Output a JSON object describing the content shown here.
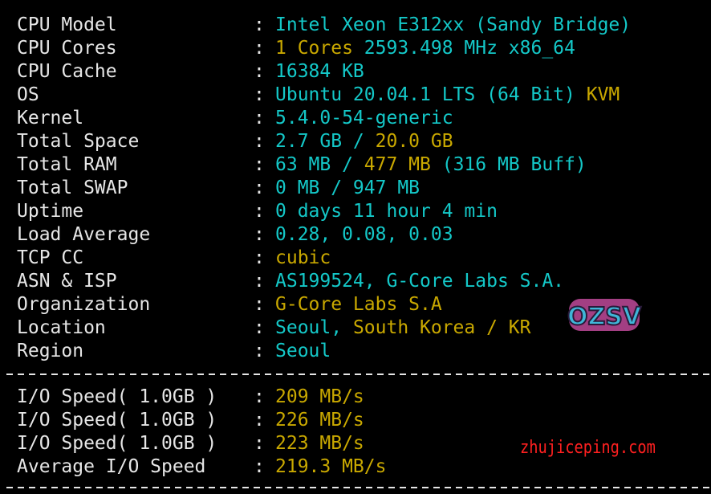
{
  "info_rows": [
    {
      "label": "CPU Model",
      "segments": [
        {
          "text": "Intel Xeon E312xx (Sandy Bridge)",
          "color": "c"
        }
      ]
    },
    {
      "label": "CPU Cores",
      "segments": [
        {
          "text": "1 Cores ",
          "color": "y"
        },
        {
          "text": "2593.498 MHz x86_64",
          "color": "c"
        }
      ]
    },
    {
      "label": "CPU Cache",
      "segments": [
        {
          "text": "16384 KB",
          "color": "c"
        }
      ]
    },
    {
      "label": "OS",
      "segments": [
        {
          "text": "Ubuntu 20.04.1 LTS (64 Bit) ",
          "color": "c"
        },
        {
          "text": "KVM",
          "color": "y"
        }
      ]
    },
    {
      "label": "Kernel",
      "segments": [
        {
          "text": "5.4.0-54-generic",
          "color": "c"
        }
      ]
    },
    {
      "label": "Total Space",
      "segments": [
        {
          "text": "2.7 GB / ",
          "color": "c"
        },
        {
          "text": "20.0 GB",
          "color": "y"
        }
      ]
    },
    {
      "label": "Total RAM",
      "segments": [
        {
          "text": "63 MB / ",
          "color": "c"
        },
        {
          "text": "477 MB",
          "color": "y"
        },
        {
          "text": " (316 MB Buff)",
          "color": "c"
        }
      ]
    },
    {
      "label": "Total SWAP",
      "segments": [
        {
          "text": "0 MB / 947 MB",
          "color": "c"
        }
      ]
    },
    {
      "label": "Uptime",
      "segments": [
        {
          "text": "0 days 11 hour 4 min",
          "color": "c"
        }
      ]
    },
    {
      "label": "Load Average",
      "segments": [
        {
          "text": "0.28, 0.08, 0.03",
          "color": "c"
        }
      ]
    },
    {
      "label": "TCP CC",
      "segments": [
        {
          "text": "cubic",
          "color": "y"
        }
      ]
    },
    {
      "label": "ASN & ISP",
      "segments": [
        {
          "text": "AS199524, G-Core Labs S.A.",
          "color": "c"
        }
      ]
    },
    {
      "label": "Organization",
      "segments": [
        {
          "text": "G-Core Labs S.A",
          "color": "y"
        }
      ]
    },
    {
      "label": "Location",
      "segments": [
        {
          "text": "Seoul, ",
          "color": "c"
        },
        {
          "text": "South Korea / KR",
          "color": "y"
        }
      ]
    },
    {
      "label": "Region",
      "segments": [
        {
          "text": "Seoul",
          "color": "c"
        }
      ]
    }
  ],
  "io_rows": [
    {
      "label": "I/O Speed( 1.0GB )",
      "segments": [
        {
          "text": "209 MB/s",
          "color": "y"
        }
      ]
    },
    {
      "label": "I/O Speed( 1.0GB )",
      "segments": [
        {
          "text": "226 MB/s",
          "color": "y"
        }
      ]
    },
    {
      "label": "I/O Speed( 1.0GB )",
      "segments": [
        {
          "text": "223 MB/s",
          "color": "y"
        }
      ]
    },
    {
      "label": "Average I/O Speed",
      "segments": [
        {
          "text": "219.3 MB/s",
          "color": "y"
        }
      ]
    }
  ],
  "separator": ":",
  "colors": {
    "c": "#14c8c8",
    "y": "#c9a800",
    "label": "#e6e6e6",
    "watermark": "#ff2020"
  },
  "watermark": "zhujiceping.com",
  "logo_text": "OZSV"
}
